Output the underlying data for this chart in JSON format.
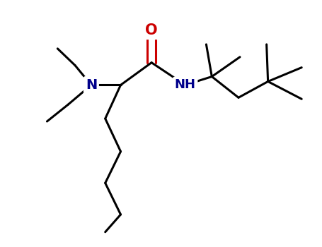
{
  "bg_color": "#ffffff",
  "bond_color": "#000000",
  "N_color": "#00008B",
  "O_color": "#cc0000",
  "line_width": 2.2,
  "font_size_N": 14,
  "font_size_O": 15,
  "figsize": [
    4.55,
    3.5
  ],
  "dpi": 100,
  "xlim": [
    0,
    10
  ],
  "ylim": [
    0,
    7.7
  ]
}
